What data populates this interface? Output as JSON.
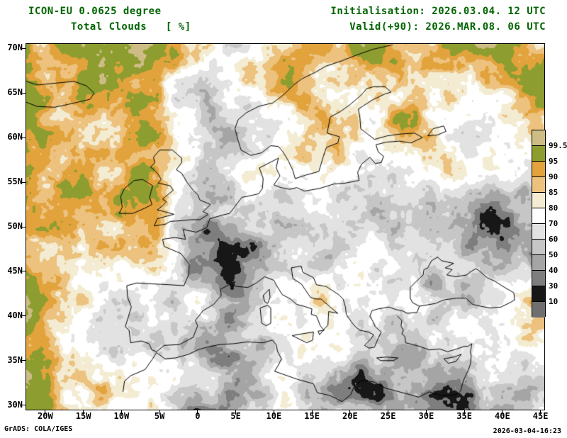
{
  "header": {
    "model_line": "ICON-EU 0.0625 degree",
    "variable_line": "Total Clouds   [ %]",
    "init_line": "Initialisation: 2026.03.04. 12 UTC",
    "valid_line": "Valid(+90): 2026.MAR.08. 06 UTC",
    "text_color": "#006400"
  },
  "footer": {
    "left": "GrADS: COLA/IGES",
    "right": "2026-03-04-16:23"
  },
  "chart_data": {
    "type": "heatmap",
    "title": "ICON-EU 0.0625 degree Total Clouds [%]",
    "subtitle": "Initialisation: 2026.03.04. 12 UTC, Valid(+90): 2026.MAR.08. 06 UTC",
    "units": "%",
    "projection": "lat-lon",
    "lon_range": [
      -22.5,
      45.5
    ],
    "lat_range": [
      29.5,
      70.5
    ],
    "x_ticks": [
      "20W",
      "15W",
      "10W",
      "5W",
      "0",
      "5E",
      "10E",
      "15E",
      "20E",
      "25E",
      "30E",
      "35E",
      "40E",
      "45E"
    ],
    "x_tick_lons": [
      -20,
      -15,
      -10,
      -5,
      0,
      5,
      10,
      15,
      20,
      25,
      30,
      35,
      40,
      45
    ],
    "y_ticks": [
      "70N",
      "65N",
      "60N",
      "55N",
      "50N",
      "45N",
      "40N",
      "35N",
      "30N"
    ],
    "y_tick_lats": [
      70,
      65,
      60,
      55,
      50,
      45,
      40,
      35,
      30
    ],
    "grid": false,
    "legend_position": "right",
    "colorbar": {
      "labels": [
        "99.5",
        "95",
        "90",
        "85",
        "80",
        "70",
        "60",
        "50",
        "40",
        "30",
        "10"
      ],
      "colors": [
        "#cdbd85",
        "#8e9d30",
        "#e2a33c",
        "#ecc27e",
        "#f3ecd2",
        "#ffffff",
        "#e2e2e2",
        "#c6c6c6",
        "#a5a5a5",
        "#7e7e7e",
        "#171717",
        "#6f6f6f"
      ]
    },
    "field": "total cloud cover fraction shaded from <10% (gray) through gray scale, white, cream, orange to olive (95-99.5%) and khaki (>99.5%)"
  }
}
